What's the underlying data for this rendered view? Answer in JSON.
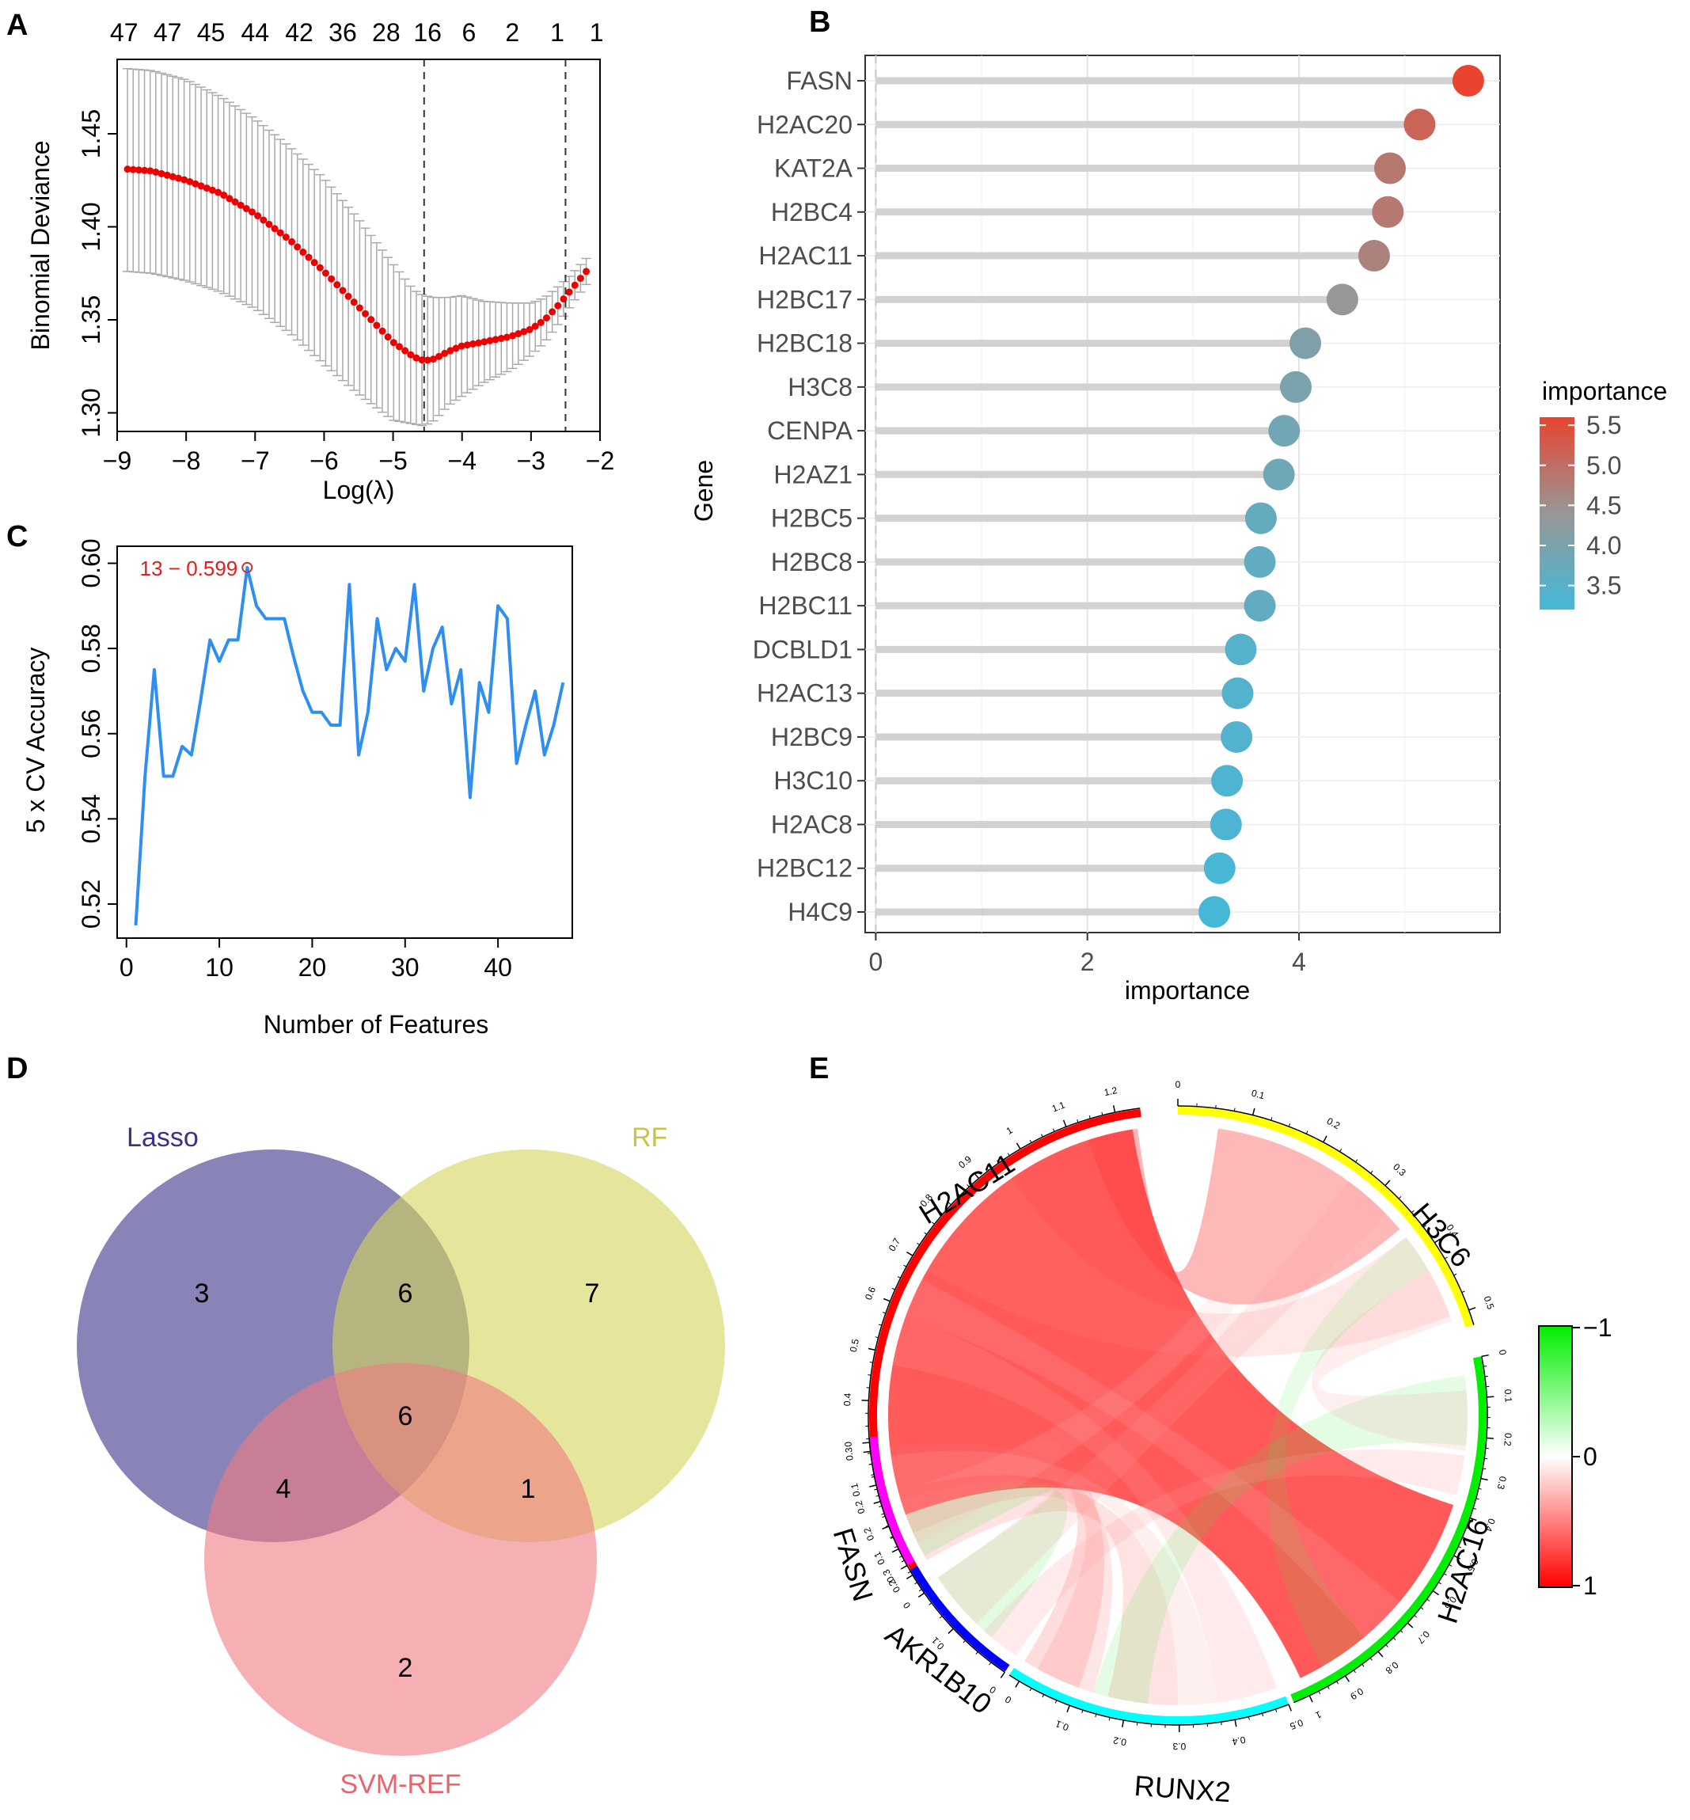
{
  "panels": {
    "a": "A",
    "b": "B",
    "c": "C",
    "d": "D",
    "e": "E"
  },
  "chart_data": [
    {
      "panel": "A",
      "type": "scatter",
      "title": "",
      "xlabel": "Log(λ)",
      "ylabel": "Binomial Deviance",
      "xlim": [
        -9.0,
        -2.0
      ],
      "ylim": [
        1.29,
        1.49
      ],
      "xticks": [
        -9,
        -8,
        -7,
        -6,
        -5,
        -4,
        -3,
        -2
      ],
      "xtick_labels": [
        "−9",
        "−8",
        "−7",
        "−6",
        "−5",
        "−4",
        "−3",
        "−2"
      ],
      "yticks": [
        1.3,
        1.35,
        1.4,
        1.45
      ],
      "ytick_labels": [
        "1.30",
        "1.35",
        "1.40",
        "1.45"
      ],
      "top_axis_labels": [
        "47",
        "47",
        "45",
        "44",
        "42",
        "36",
        "28",
        "16",
        "6",
        "2",
        "1",
        "1"
      ],
      "top_axis_positions": [
        -8.9,
        -8.27,
        -7.64,
        -7.0,
        -6.36,
        -5.73,
        -5.1,
        -4.5,
        -3.9,
        -3.27,
        -2.62,
        -2.05
      ],
      "vlines": [
        -4.55,
        -2.5
      ],
      "curve": {
        "lambda": [
          -8.85,
          -8.5,
          -8.0,
          -7.5,
          -7.0,
          -6.5,
          -6.0,
          -5.5,
          -5.0,
          -4.7,
          -4.55,
          -4.4,
          -4.2,
          -4.0,
          -3.7,
          -3.3,
          -3.0,
          -2.8,
          -2.6,
          -2.4,
          -2.2
        ],
        "deviance": [
          1.431,
          1.43,
          1.425,
          1.418,
          1.407,
          1.393,
          1.376,
          1.357,
          1.338,
          1.33,
          1.328,
          1.329,
          1.333,
          1.336,
          1.338,
          1.341,
          1.345,
          1.35,
          1.358,
          1.367,
          1.376
        ],
        "upper": [
          1.485,
          1.484,
          1.479,
          1.47,
          1.458,
          1.443,
          1.426,
          1.404,
          1.38,
          1.366,
          1.363,
          1.362,
          1.362,
          1.363,
          1.36,
          1.359,
          1.359,
          1.362,
          1.368,
          1.375,
          1.383
        ],
        "lower": [
          1.376,
          1.375,
          1.371,
          1.365,
          1.356,
          1.343,
          1.326,
          1.31,
          1.296,
          1.294,
          1.293,
          1.296,
          1.304,
          1.309,
          1.316,
          1.323,
          1.331,
          1.338,
          1.348,
          1.359,
          1.369
        ]
      }
    },
    {
      "panel": "B",
      "type": "lollipop",
      "xlabel": "importance",
      "ylabel": "Gene",
      "xlim": [
        -0.1,
        5.9
      ],
      "xticks": [
        0,
        2,
        4
      ],
      "xtick_labels": [
        "0",
        "2",
        "4"
      ],
      "genes": [
        "FASN",
        "H2AC20",
        "KAT2A",
        "H2BC4",
        "H2AC11",
        "H2BC17",
        "H2BC18",
        "H3C8",
        "CENPA",
        "H2AZ1",
        "H2BC5",
        "H2BC8",
        "H2BC11",
        "DCBLD1",
        "H2AC13",
        "H2BC9",
        "H3C10",
        "H2AC8",
        "H2BC12",
        "H4C9"
      ],
      "values": [
        5.6,
        5.14,
        4.86,
        4.84,
        4.71,
        4.41,
        4.06,
        3.97,
        3.86,
        3.81,
        3.64,
        3.63,
        3.63,
        3.45,
        3.42,
        3.41,
        3.32,
        3.31,
        3.25,
        3.2
      ],
      "legend": {
        "title": "importance",
        "labels": [
          "5.5",
          "5.0",
          "4.5",
          "4.0",
          "3.5"
        ],
        "range": [
          3.2,
          5.6
        ],
        "high_color": "#e8442f",
        "mid_color": "#979797",
        "low_color": "#45b8d8"
      }
    },
    {
      "panel": "C",
      "type": "line",
      "xlabel": "Number of Features",
      "ylabel": "5 x CV Accuracy",
      "xlim": [
        -1,
        48
      ],
      "ylim": [
        0.512,
        0.604
      ],
      "xticks": [
        0,
        10,
        20,
        30,
        40
      ],
      "xtick_labels": [
        "0",
        "10",
        "20",
        "30",
        "40"
      ],
      "yticks": [
        0.52,
        0.54,
        0.56,
        0.58,
        0.6
      ],
      "ytick_labels": [
        "0.52",
        "0.54",
        "0.56",
        "0.58",
        "0.60"
      ],
      "annotation": "13 − 0.599",
      "highlight": {
        "x": 13,
        "y": 0.599
      },
      "color": "#2e8ff0",
      "x": [
        1,
        2,
        3,
        4,
        5,
        6,
        7,
        8,
        9,
        10,
        11,
        12,
        13,
        14,
        15,
        16,
        17,
        18,
        19,
        20,
        21,
        22,
        23,
        24,
        25,
        26,
        27,
        28,
        29,
        30,
        31,
        32,
        33,
        34,
        35,
        36,
        37,
        38,
        39,
        40,
        41,
        42,
        43,
        44,
        45,
        46,
        47
      ],
      "y": [
        0.515,
        0.55,
        0.575,
        0.55,
        0.55,
        0.557,
        0.555,
        0.568,
        0.582,
        0.577,
        0.582,
        0.582,
        0.599,
        0.59,
        0.587,
        0.587,
        0.587,
        0.578,
        0.57,
        0.565,
        0.565,
        0.562,
        0.562,
        0.595,
        0.555,
        0.565,
        0.587,
        0.575,
        0.58,
        0.577,
        0.595,
        0.57,
        0.58,
        0.585,
        0.567,
        0.575,
        0.545,
        0.572,
        0.565,
        0.59,
        0.587,
        0.553,
        0.562,
        0.57,
        0.555,
        0.562,
        0.572
      ]
    },
    {
      "panel": "D",
      "type": "venn",
      "sets": [
        {
          "name": "Lasso",
          "color": "#3b3287",
          "fill": "#3b3287"
        },
        {
          "name": "RF",
          "color": "#c5c547",
          "fill": "#d4d45a"
        },
        {
          "name": "SVM-REF",
          "color": "#e9636a",
          "fill": "#f07a80"
        }
      ],
      "regions": {
        "lasso_only": "3",
        "rf_only": "7",
        "svm_only": "2",
        "lasso_rf": "6",
        "lasso_svm": "4",
        "rf_svm": "1",
        "all": "6"
      }
    },
    {
      "panel": "E",
      "type": "chord",
      "sectors": [
        {
          "name": "H2AC11",
          "color": "#ff0000",
          "max": 1.3,
          "ticks": [
            "0",
            "0.1",
            "0.2",
            "0.3",
            "0.4",
            "0.5",
            "0.6",
            "0.7",
            "0.8",
            "0.9",
            "1",
            "1.1",
            "1.2"
          ]
        },
        {
          "name": "H3C6",
          "color": "#ffff00",
          "max": 0.6,
          "ticks": [
            "0",
            "0.1",
            "0.2",
            "0.3",
            "0.4",
            "0.5"
          ]
        },
        {
          "name": "H2AC16",
          "color": "#00ee00",
          "max": 1.05,
          "ticks": [
            "0",
            "0.1",
            "0.2",
            "0.3",
            "0.4",
            "0.5",
            "0.6",
            "0.7",
            "0.8",
            "0.9",
            "1"
          ]
        },
        {
          "name": "RUNX2",
          "color": "#00ffff",
          "max": 0.55,
          "ticks": [
            "0.5",
            "0.4",
            "0.3",
            "0.2",
            "0.1",
            "0"
          ]
        },
        {
          "name": "AKR1B10",
          "color": "#0000ff",
          "max": 0.25,
          "ticks": [
            "0",
            "0.1",
            "0.2"
          ]
        },
        {
          "name": "FASN",
          "color": "#ff00ff",
          "max": 0.35,
          "ticks": [
            "0.3",
            "0.2",
            "0.1",
            "0"
          ]
        }
      ],
      "legend": {
        "labels": [
          "−1",
          "0",
          "1"
        ],
        "high_color": "#ff0000",
        "mid_color": "#ffffff",
        "low_color": "#00ff00"
      }
    }
  ]
}
